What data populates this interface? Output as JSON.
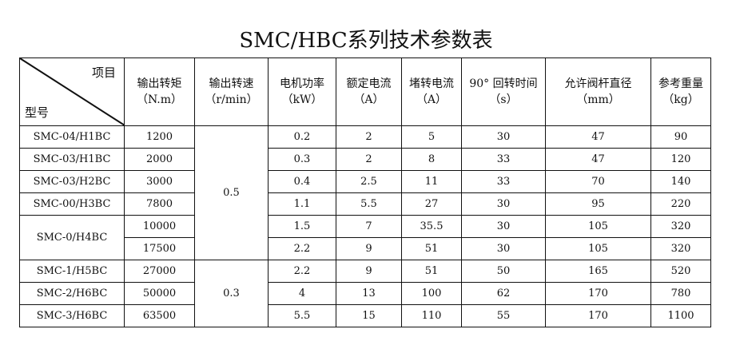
{
  "title": "SMC/HBC系列技术参数表",
  "corner": {
    "top": "项目",
    "bottom": "型号"
  },
  "headers": [
    {
      "name": "输出转矩",
      "unit": "（N.m）"
    },
    {
      "name": "输出转速",
      "unit": "（r/min）"
    },
    {
      "name": "电机功率",
      "unit": "（kW）"
    },
    {
      "name": "额定电流",
      "unit": "（A）"
    },
    {
      "name": "堵转电流",
      "unit": "（A）"
    },
    {
      "name": "90° 回转时间",
      "unit": "（s）"
    },
    {
      "name": "允许阀杆直径",
      "unit": "（mm）"
    },
    {
      "name": "参考重量",
      "unit": "（kg）"
    }
  ],
  "speed_groups": [
    "0.5",
    "0.3"
  ],
  "rows": [
    {
      "model": "SMC-04/H1BC",
      "torque": "1200",
      "power": "0.2",
      "rated": "2",
      "stall": "5",
      "time": "30",
      "stem": "47",
      "weight": "90"
    },
    {
      "model": "SMC-03/H1BC",
      "torque": "2000",
      "power": "0.3",
      "rated": "2",
      "stall": "8",
      "time": "33",
      "stem": "47",
      "weight": "120"
    },
    {
      "model": "SMC-03/H2BC",
      "torque": "3000",
      "power": "0.4",
      "rated": "2.5",
      "stall": "11",
      "time": "33",
      "stem": "70",
      "weight": "140"
    },
    {
      "model": "SMC-00/H3BC",
      "torque": "7800",
      "power": "1.1",
      "rated": "5.5",
      "stall": "27",
      "time": "30",
      "stem": "95",
      "weight": "220"
    },
    {
      "model": "SMC-0/H4BC",
      "torque": "10000",
      "power": "1.5",
      "rated": "7",
      "stall": "35.5",
      "time": "30",
      "stem": "105",
      "weight": "320"
    },
    {
      "model": "",
      "torque": "17500",
      "power": "2.2",
      "rated": "9",
      "stall": "51",
      "time": "30",
      "stem": "105",
      "weight": "320"
    },
    {
      "model": "SMC-1/H5BC",
      "torque": "27000",
      "power": "2.2",
      "rated": "9",
      "stall": "51",
      "time": "50",
      "stem": "165",
      "weight": "520"
    },
    {
      "model": "SMC-2/H6BC",
      "torque": "50000",
      "power": "4",
      "rated": "13",
      "stall": "100",
      "time": "62",
      "stem": "170",
      "weight": "780"
    },
    {
      "model": "SMC-3/H6BC",
      "torque": "63500",
      "power": "5.5",
      "rated": "15",
      "stall": "110",
      "time": "55",
      "stem": "170",
      "weight": "1100"
    }
  ]
}
